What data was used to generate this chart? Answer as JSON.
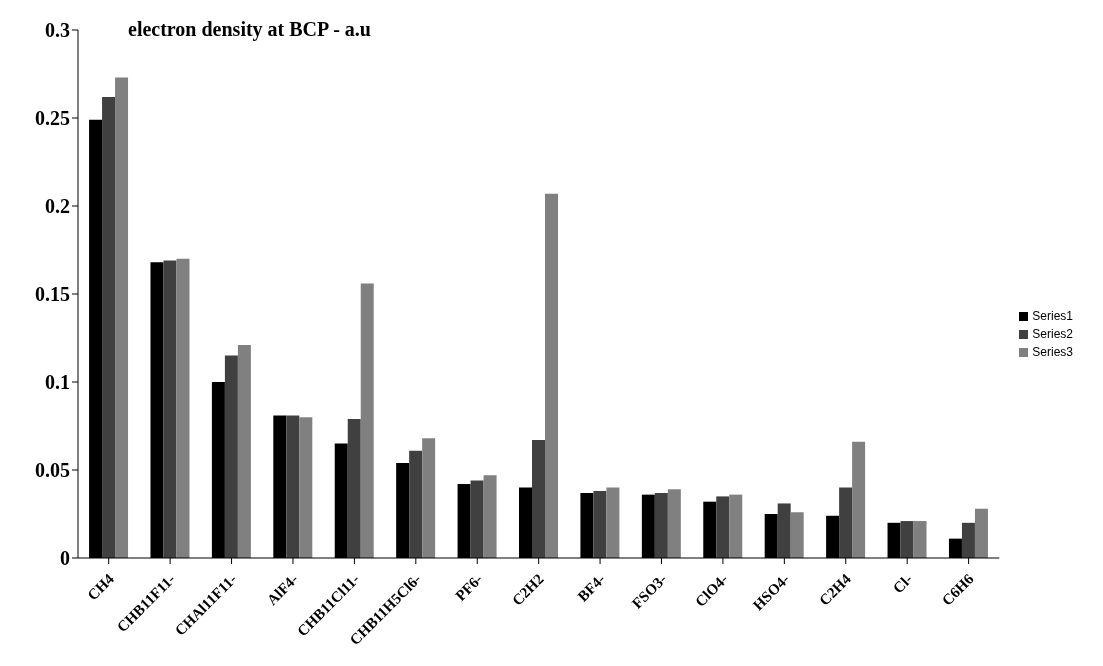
{
  "chart_data": {
    "type": "bar",
    "title": "electron density at BCP - a.u",
    "categories": [
      "CH4",
      "CHB11F11-",
      "CHAl11F11-",
      "AlF4-",
      "CHB11Cl11-",
      "CHB11H5Cl6-",
      "PF6-",
      "C2H2",
      "BF4-",
      "FSO3-",
      "ClO4-",
      "HSO4-",
      "C2H4",
      "Cl-",
      "C6H6"
    ],
    "series": [
      {
        "name": "Series1",
        "color": "#000000",
        "values": [
          0.249,
          0.168,
          0.1,
          0.081,
          0.065,
          0.054,
          0.042,
          0.04,
          0.037,
          0.036,
          0.032,
          0.025,
          0.024,
          0.02,
          0.011
        ]
      },
      {
        "name": "Series2",
        "color": "#404040",
        "values": [
          0.262,
          0.169,
          0.115,
          0.081,
          0.079,
          0.061,
          0.044,
          0.067,
          0.038,
          0.037,
          0.035,
          0.031,
          0.04,
          0.021,
          0.02
        ]
      },
      {
        "name": "Series3",
        "color": "#808080",
        "values": [
          0.273,
          0.17,
          0.121,
          0.08,
          0.156,
          0.068,
          0.047,
          0.207,
          0.04,
          0.039,
          0.036,
          0.026,
          0.066,
          0.021,
          0.028
        ]
      }
    ],
    "ylim": [
      0,
      0.3
    ],
    "yticks": [
      0,
      0.05,
      0.1,
      0.15,
      0.2,
      0.25,
      0.3
    ],
    "grid": false,
    "legend": "right"
  }
}
